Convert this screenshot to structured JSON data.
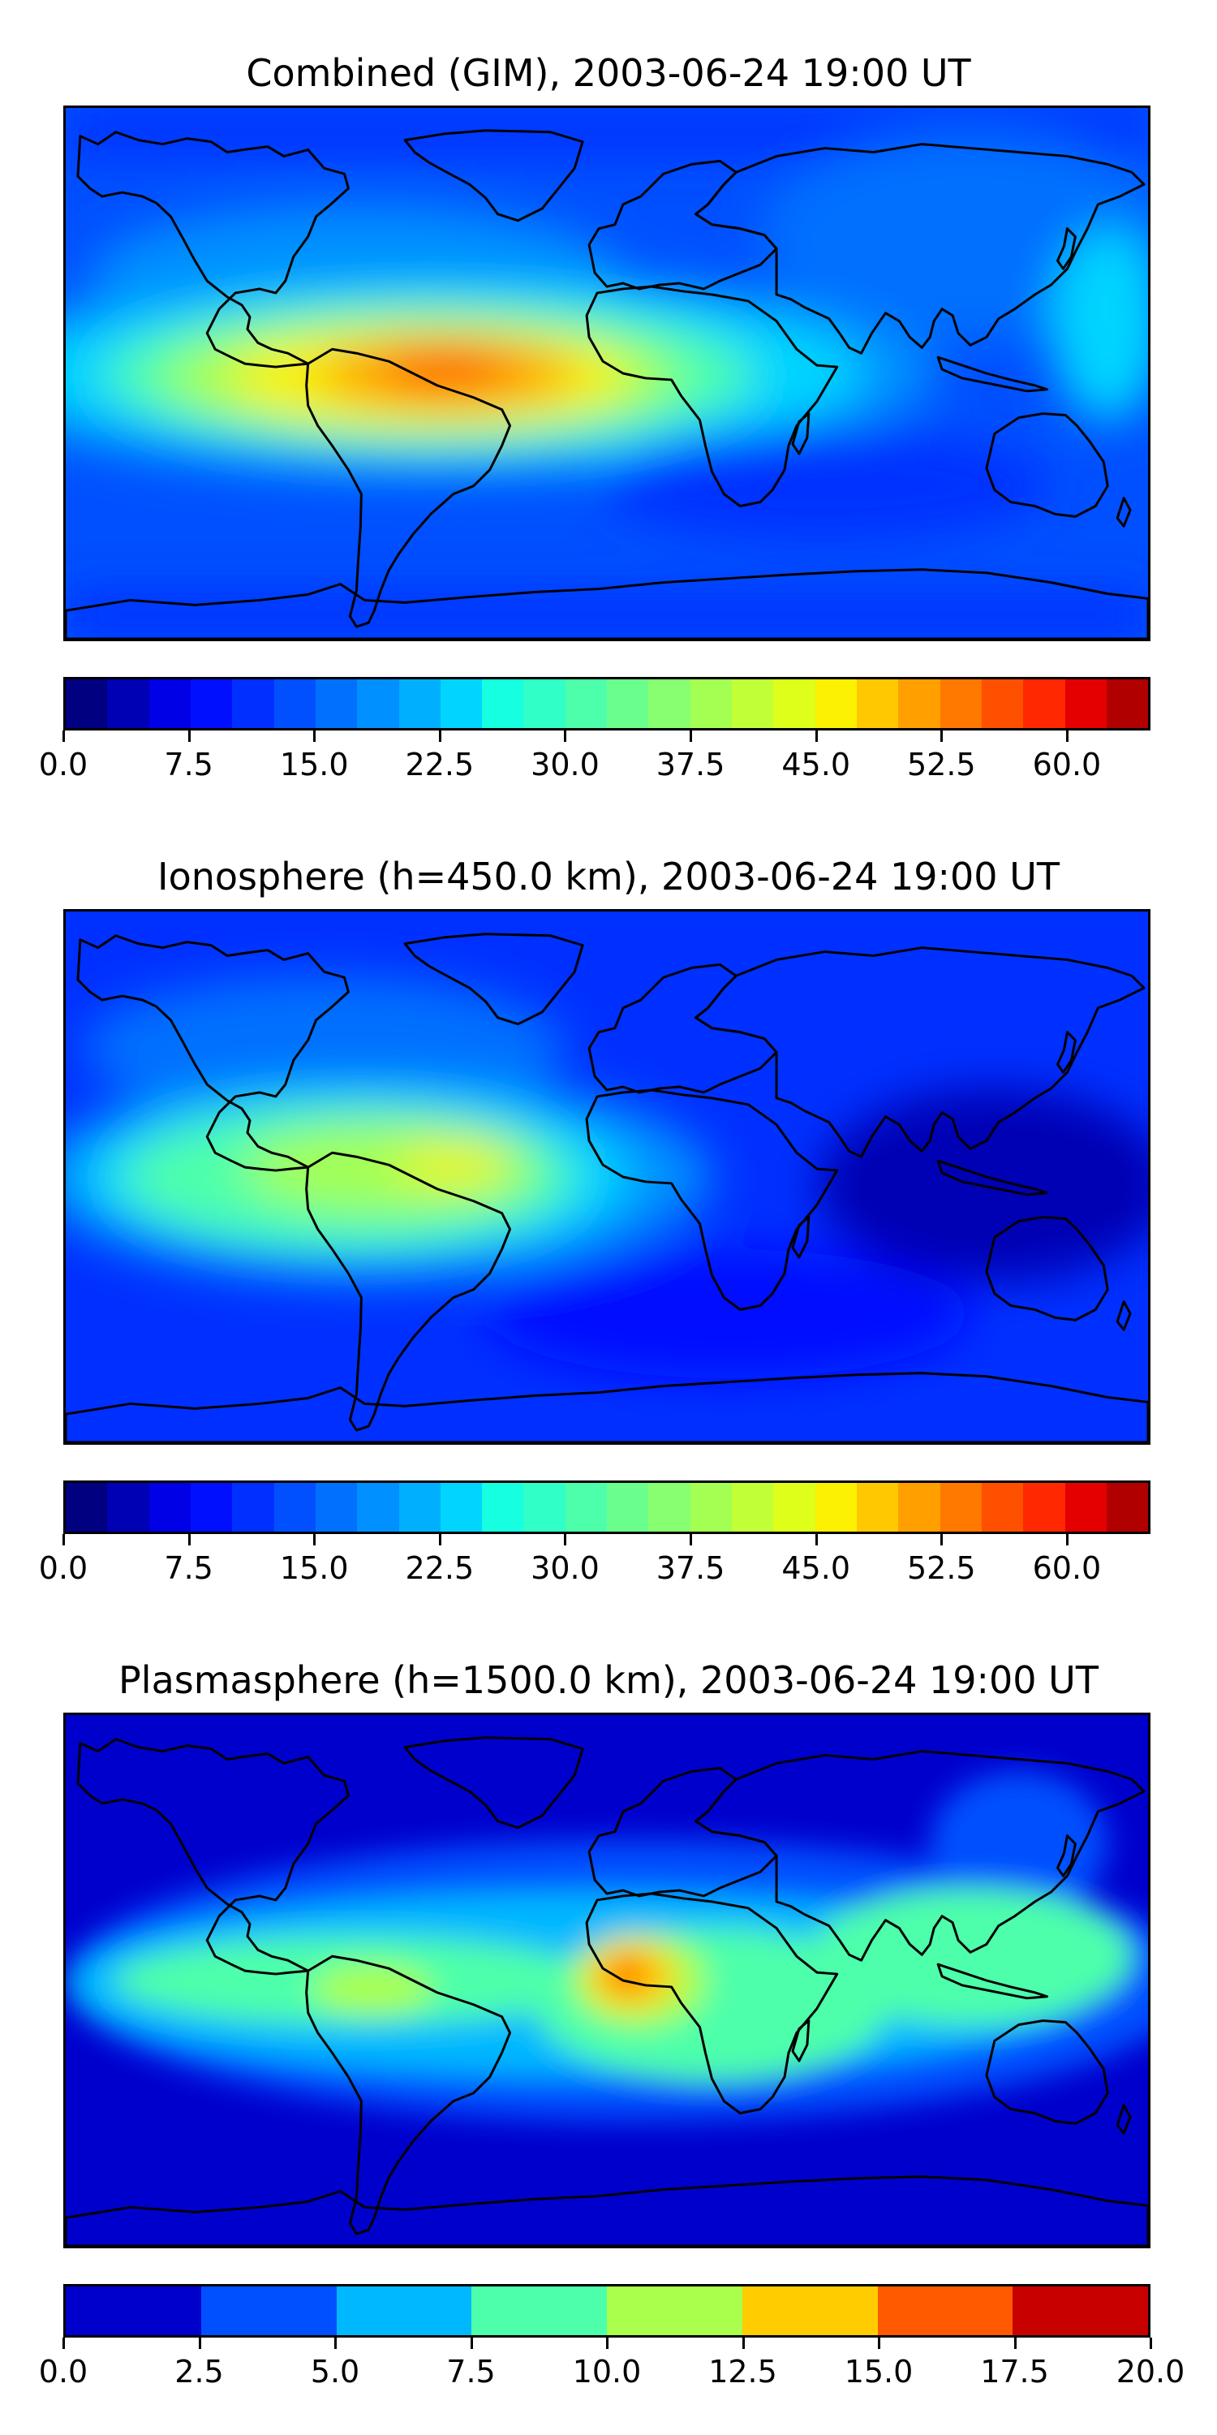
{
  "panels": [
    {
      "title": "Combined (GIM), 2003-06-24 19:00 UT",
      "colorbar": {
        "min": 0,
        "max": 65,
        "levels": 26,
        "tick_values": [
          0,
          7.5,
          15,
          22.5,
          30,
          37.5,
          45,
          52.5,
          60
        ],
        "tick_labels": [
          "0.0",
          "7.5",
          "15.0",
          "22.5",
          "30.0",
          "37.5",
          "45.0",
          "52.5",
          "60.0"
        ],
        "colors": [
          "#000080",
          "#0000b4",
          "#0000e6",
          "#0010ff",
          "#0030ff",
          "#0050ff",
          "#0070ff",
          "#0090ff",
          "#00b0ff",
          "#00d4ff",
          "#16ffe1",
          "#30ffc7",
          "#4dffaa",
          "#6aff8d",
          "#87ff70",
          "#a4ff53",
          "#c1ff36",
          "#deff19",
          "#fbf100",
          "#ffc800",
          "#ffa000",
          "#ff7800",
          "#ff5000",
          "#ff2800",
          "#e40000",
          "#b00000"
        ]
      }
    },
    {
      "title": "Ionosphere  (h=450.0 km), 2003-06-24 19:00 UT",
      "colorbar": {
        "min": 0,
        "max": 65,
        "levels": 26,
        "tick_values": [
          0,
          7.5,
          15,
          22.5,
          30,
          37.5,
          45,
          52.5,
          60
        ],
        "tick_labels": [
          "0.0",
          "7.5",
          "15.0",
          "22.5",
          "30.0",
          "37.5",
          "45.0",
          "52.5",
          "60.0"
        ],
        "colors": [
          "#000080",
          "#0000b4",
          "#0000e6",
          "#0010ff",
          "#0030ff",
          "#0050ff",
          "#0070ff",
          "#0090ff",
          "#00b0ff",
          "#00d4ff",
          "#16ffe1",
          "#30ffc7",
          "#4dffaa",
          "#6aff8d",
          "#87ff70",
          "#a4ff53",
          "#c1ff36",
          "#deff19",
          "#fbf100",
          "#ffc800",
          "#ffa000",
          "#ff7800",
          "#ff5000",
          "#ff2800",
          "#e40000",
          "#b00000"
        ]
      }
    },
    {
      "title": "Plasmasphere (h=1500.0 km), 2003-06-24 19:00 UT",
      "colorbar": {
        "min": 0,
        "max": 20,
        "levels": 8,
        "tick_values": [
          0,
          2.5,
          5,
          7.5,
          10,
          12.5,
          15,
          17.5,
          20
        ],
        "tick_labels": [
          "0.0",
          "2.5",
          "5.0",
          "7.5",
          "10.0",
          "12.5",
          "15.0",
          "17.5",
          "20.0"
        ],
        "colors": [
          "#0000cd",
          "#0050ff",
          "#00b8ff",
          "#4dffaa",
          "#aaff4d",
          "#ffcc00",
          "#ff5a00",
          "#c80000"
        ]
      }
    }
  ]
}
